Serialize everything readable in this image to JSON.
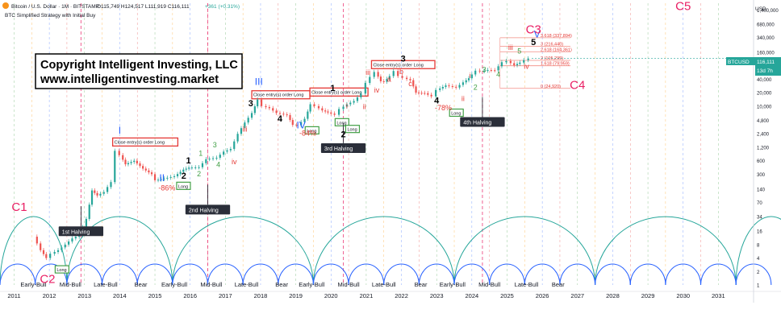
{
  "header": {
    "symbol_line": "Bitcoin / U.S. Dollar · 1M · BITSTAMP",
    "ohlc": "O115,749  H124,517  L111,919  C116,111",
    "change": "+361 (+0.31%)",
    "strategy": "BTC Simplified Strategy with Initial Buy",
    "currency": "USD"
  },
  "copyright": {
    "line1": "Copyright Intelligent Investing, LLC",
    "line2": "www.intelligentinvesting.market"
  },
  "price_tag": {
    "symbol": "BTCUSD",
    "price": "116,111",
    "countdown": "13d 7h"
  },
  "colors": {
    "candle_up": "#26a69a",
    "candle_down": "#ef5350",
    "cycle_arc": "#26a69a",
    "wave_blue": "#2962ff",
    "wave_red": "#e53935",
    "wave_green": "#43a047",
    "fib": "#f28b82",
    "cycle_label": "#e91e63"
  },
  "chart_data": {
    "type": "line",
    "scale": "log",
    "x_range": [
      2010.6,
      2032.0
    ],
    "y_range": [
      1,
      2000000
    ],
    "y_ticks": [
      {
        "v": 1400000,
        "t": "1,400,000"
      },
      {
        "v": 680000,
        "t": "680,000"
      },
      {
        "v": 340000,
        "t": "340,000"
      },
      {
        "v": 160000,
        "t": "160,000"
      },
      {
        "v": 80000,
        "t": "80,000"
      },
      {
        "v": 40000,
        "t": "40,000"
      },
      {
        "v": 20000,
        "t": "20,000"
      },
      {
        "v": 10000,
        "t": "10,000"
      },
      {
        "v": 4800,
        "t": "4,800"
      },
      {
        "v": 2400,
        "t": "2,400"
      },
      {
        "v": 1200,
        "t": "1,200"
      },
      {
        "v": 600,
        "t": "600"
      },
      {
        "v": 300,
        "t": "300"
      },
      {
        "v": 140,
        "t": "140"
      },
      {
        "v": 70,
        "t": "70"
      },
      {
        "v": 34,
        "t": "34"
      },
      {
        "v": 16,
        "t": "16"
      },
      {
        "v": 8,
        "t": "8"
      },
      {
        "v": 4,
        "t": "4"
      },
      {
        "v": 2,
        "t": "2"
      },
      {
        "v": 1,
        "t": "1"
      }
    ],
    "x_ticks": [
      {
        "v": 2011,
        "t": "2011"
      },
      {
        "v": 2012,
        "t": "2012"
      },
      {
        "v": 2013,
        "t": "2013"
      },
      {
        "v": 2014,
        "t": "2014"
      },
      {
        "v": 2015,
        "t": "2015"
      },
      {
        "v": 2016,
        "t": "2016"
      },
      {
        "v": 2017,
        "t": "2017"
      },
      {
        "v": 2018,
        "t": "2018"
      },
      {
        "v": 2019,
        "t": "2019"
      },
      {
        "v": 2020,
        "t": "2020"
      },
      {
        "v": 2021,
        "t": "2021"
      },
      {
        "v": 2022,
        "t": "2022"
      },
      {
        "v": 2023,
        "t": "2023"
      },
      {
        "v": 2024,
        "t": "2024"
      },
      {
        "v": 2025,
        "t": "2025"
      },
      {
        "v": 2026,
        "t": "2026"
      },
      {
        "v": 2027,
        "t": "2027"
      },
      {
        "v": 2028,
        "t": "2028"
      },
      {
        "v": 2029,
        "t": "2029"
      },
      {
        "v": 2030,
        "t": "2030"
      },
      {
        "v": 2031,
        "t": "2031"
      }
    ],
    "price": [
      [
        2011.6,
        12
      ],
      [
        2011.8,
        6
      ],
      [
        2011.95,
        4
      ],
      [
        2012.1,
        5
      ],
      [
        2012.3,
        6
      ],
      [
        2012.5,
        8
      ],
      [
        2012.7,
        11
      ],
      [
        2012.9,
        13
      ],
      [
        2013.1,
        30
      ],
      [
        2013.25,
        130
      ],
      [
        2013.4,
        100
      ],
      [
        2013.6,
        120
      ],
      [
        2013.8,
        200
      ],
      [
        2013.92,
        1000
      ],
      [
        2014.05,
        800
      ],
      [
        2014.2,
        500
      ],
      [
        2014.45,
        600
      ],
      [
        2014.7,
        400
      ],
      [
        2014.95,
        300
      ],
      [
        2015.05,
        220
      ],
      [
        2015.3,
        240
      ],
      [
        2015.6,
        270
      ],
      [
        2015.85,
        380
      ],
      [
        2016.0,
        420
      ],
      [
        2016.3,
        430
      ],
      [
        2016.5,
        650
      ],
      [
        2016.8,
        700
      ],
      [
        2017.0,
        960
      ],
      [
        2017.2,
        1100
      ],
      [
        2017.4,
        2400
      ],
      [
        2017.6,
        4300
      ],
      [
        2017.8,
        7000
      ],
      [
        2017.95,
        14000
      ],
      [
        2018.1,
        10000
      ],
      [
        2018.3,
        9000
      ],
      [
        2018.5,
        7000
      ],
      [
        2018.8,
        6300
      ],
      [
        2018.95,
        3800
      ],
      [
        2019.1,
        3700
      ],
      [
        2019.3,
        5200
      ],
      [
        2019.45,
        11000
      ],
      [
        2019.6,
        10000
      ],
      [
        2019.8,
        8000
      ],
      [
        2019.95,
        7200
      ],
      [
        2020.15,
        6400
      ],
      [
        2020.3,
        8600
      ],
      [
        2020.5,
        11000
      ],
      [
        2020.7,
        13000
      ],
      [
        2020.9,
        19000
      ],
      [
        2021.05,
        33000
      ],
      [
        2021.15,
        45000
      ],
      [
        2021.3,
        58000
      ],
      [
        2021.45,
        36000
      ],
      [
        2021.55,
        35000
      ],
      [
        2021.7,
        47000
      ],
      [
        2021.85,
        61000
      ],
      [
        2021.95,
        47000
      ],
      [
        2022.1,
        43000
      ],
      [
        2022.3,
        38000
      ],
      [
        2022.45,
        20000
      ],
      [
        2022.7,
        19500
      ],
      [
        2022.9,
        16500
      ],
      [
        2023.05,
        23000
      ],
      [
        2023.3,
        29000
      ],
      [
        2023.6,
        26000
      ],
      [
        2023.8,
        34000
      ],
      [
        2023.95,
        42000
      ],
      [
        2024.15,
        62000
      ],
      [
        2024.3,
        60000
      ],
      [
        2024.5,
        64000
      ],
      [
        2024.7,
        63000
      ],
      [
        2024.9,
        96000
      ],
      [
        2025.05,
        102000
      ],
      [
        2025.25,
        82000
      ],
      [
        2025.4,
        94000
      ],
      [
        2025.55,
        107000
      ],
      [
        2025.65,
        116111
      ]
    ],
    "halvings": [
      {
        "x": 2012.9,
        "label": "1st Halving",
        "y": 18
      },
      {
        "x": 2016.5,
        "label": "2nd Halving",
        "y": 55
      },
      {
        "x": 2020.35,
        "label": "3rd Halving",
        "y": 1300
      },
      {
        "x": 2024.3,
        "label": "4th Halving",
        "y": 5000
      }
    ],
    "phase_labels": [
      {
        "x": 2011.55,
        "t": "Early-Bull"
      },
      {
        "x": 2012.6,
        "t": "Mid-Bull"
      },
      {
        "x": 2013.6,
        "t": "Late-Bull"
      },
      {
        "x": 2014.6,
        "t": "Bear"
      },
      {
        "x": 2015.55,
        "t": "Early-Bull"
      },
      {
        "x": 2016.6,
        "t": "Mid-Bull"
      },
      {
        "x": 2017.6,
        "t": "Late-Bull"
      },
      {
        "x": 2018.6,
        "t": "Bear"
      },
      {
        "x": 2019.45,
        "t": "Early-Bull"
      },
      {
        "x": 2020.5,
        "t": "Mid-Bull"
      },
      {
        "x": 2021.5,
        "t": "Late-Bull"
      },
      {
        "x": 2022.55,
        "t": "Bear"
      },
      {
        "x": 2023.45,
        "t": "Early-Bull"
      },
      {
        "x": 2024.5,
        "t": "Mid-Bull"
      },
      {
        "x": 2025.55,
        "t": "Late-Bull"
      },
      {
        "x": 2026.45,
        "t": "Bear"
      }
    ],
    "cycle_arcs": [
      {
        "x0": 2010.6,
        "x1": 2012.5
      },
      {
        "x0": 2012.5,
        "x1": 2015.5
      },
      {
        "x0": 2015.5,
        "x1": 2019.5
      },
      {
        "x0": 2019.5,
        "x1": 2023.5
      },
      {
        "x0": 2023.5,
        "x1": 2027.5
      },
      {
        "x0": 2027.5,
        "x1": 2031.5
      },
      {
        "x0": 2031.5,
        "x1": 2033.5
      }
    ],
    "small_arcs": [
      {
        "x0": 2010.6,
        "x1": 2011.6
      },
      {
        "x0": 2011.6,
        "x1": 2012.5
      },
      {
        "x0": 2012.5,
        "x1": 2013.5
      },
      {
        "x0": 2013.5,
        "x1": 2014.5
      },
      {
        "x0": 2014.5,
        "x1": 2015.5
      },
      {
        "x0": 2015.5,
        "x1": 2016.5
      },
      {
        "x0": 2016.5,
        "x1": 2017.5
      },
      {
        "x0": 2017.5,
        "x1": 2018.5
      },
      {
        "x0": 2018.5,
        "x1": 2019.5
      },
      {
        "x0": 2019.5,
        "x1": 2020.5
      },
      {
        "x0": 2020.5,
        "x1": 2021.5
      },
      {
        "x0": 2021.5,
        "x1": 2022.5
      },
      {
        "x0": 2022.5,
        "x1": 2023.5
      },
      {
        "x0": 2023.5,
        "x1": 2024.5
      },
      {
        "x0": 2024.5,
        "x1": 2025.5
      },
      {
        "x0": 2025.5,
        "x1": 2026.5
      },
      {
        "x0": 2026.5,
        "x1": 2027.5
      },
      {
        "x0": 2027.5,
        "x1": 2028.5
      },
      {
        "x0": 2028.5,
        "x1": 2029.5
      },
      {
        "x0": 2029.5,
        "x1": 2030.5
      },
      {
        "x0": 2030.5,
        "x1": 2031.5
      },
      {
        "x0": 2031.5,
        "x1": 2032.5
      }
    ],
    "cycle_markers": [
      {
        "x": 2011.15,
        "y": 45,
        "t": "C1"
      },
      {
        "x": 2011.95,
        "y": 1.1,
        "t": "C2"
      },
      {
        "x": 2025.75,
        "y": 420000,
        "t": "C3"
      },
      {
        "x": 2027.0,
        "y": 24000,
        "t": "C4"
      },
      {
        "x": 2030.0,
        "y": 1400000,
        "t": "C5"
      }
    ],
    "fib_levels": [
      {
        "v": 337894,
        "t": "3.618 (337,894)"
      },
      {
        "v": 216440,
        "t": "3 (216,440)"
      },
      {
        "v": 164361,
        "t": "2.618 (164,361)"
      },
      {
        "v": 105299,
        "t": "2 (105,299)"
      },
      {
        "v": 79959,
        "t": "1.618 (79,959)"
      },
      {
        "v": 24920,
        "t": "0 (24,920)"
      }
    ],
    "drawdowns": [
      {
        "x": 2015.1,
        "y": 130,
        "t": "-86%"
      },
      {
        "x": 2019.1,
        "y": 2200,
        "t": "-84%"
      },
      {
        "x": 2022.95,
        "y": 8000,
        "t": "-78%"
      }
    ],
    "close_boxes": [
      {
        "x0": 2013.8,
        "x1": 2015.65,
        "y": 1450,
        "t": "Close entry(s) order Long"
      },
      {
        "x0": 2017.75,
        "x1": 2019.4,
        "y": 16500,
        "t": "Close entry(s) order Long"
      },
      {
        "x0": 2019.4,
        "x1": 2021.05,
        "y": 19000,
        "t": "Close entry(s) order Long"
      },
      {
        "x0": 2021.15,
        "x1": 2022.95,
        "y": 78000,
        "t": "Close entry(s) order Long"
      }
    ],
    "long_boxes": [
      {
        "x": 2012.35,
        "y": 2.1,
        "t": "Long"
      },
      {
        "x": 2015.8,
        "y": 155,
        "t": "Long"
      },
      {
        "x": 2019.45,
        "y": 2700,
        "t": "Long"
      },
      {
        "x": 2020.3,
        "y": 4100,
        "t": "Long"
      },
      {
        "x": 2020.6,
        "y": 2900,
        "t": "Long"
      },
      {
        "x": 2023.55,
        "y": 6700,
        "t": "Long"
      }
    ],
    "wave_labels": [
      {
        "x": 2014.0,
        "y": 2400,
        "t": "I",
        "c": "blue",
        "s": 12
      },
      {
        "x": 2015.2,
        "y": 210,
        "t": "II",
        "c": "blue",
        "s": 12
      },
      {
        "x": 2017.95,
        "y": 30000,
        "t": "III",
        "c": "blue",
        "s": 12
      },
      {
        "x": 2019.15,
        "y": 3200,
        "t": "IV",
        "c": "blue",
        "s": 12
      },
      {
        "x": 2025.85,
        "y": 340000,
        "t": "V",
        "c": "blue",
        "s": 12
      },
      {
        "x": 2015.95,
        "y": 520,
        "t": "1",
        "c": "black",
        "s": 11
      },
      {
        "x": 2015.82,
        "y": 240,
        "t": "2",
        "c": "black",
        "s": 11
      },
      {
        "x": 2017.72,
        "y": 10000,
        "t": "3",
        "c": "black",
        "s": 11
      },
      {
        "x": 2018.55,
        "y": 4500,
        "t": "4",
        "c": "black",
        "s": 11
      },
      {
        "x": 2020.05,
        "y": 22000,
        "t": "1",
        "c": "black",
        "s": 11
      },
      {
        "x": 2020.35,
        "y": 2000,
        "t": "2",
        "c": "black",
        "s": 11
      },
      {
        "x": 2022.05,
        "y": 100000,
        "t": "3",
        "c": "black",
        "s": 11
      },
      {
        "x": 2023.0,
        "y": 11500,
        "t": "4",
        "c": "black",
        "s": 11
      },
      {
        "x": 2025.75,
        "y": 230000,
        "t": "5",
        "c": "black",
        "s": 11
      },
      {
        "x": 2016.3,
        "y": 780,
        "t": "1",
        "c": "green",
        "s": 9
      },
      {
        "x": 2016.25,
        "y": 270,
        "t": "2",
        "c": "green",
        "s": 9
      },
      {
        "x": 2016.7,
        "y": 1200,
        "t": "3",
        "c": "green",
        "s": 9
      },
      {
        "x": 2016.8,
        "y": 430,
        "t": "4",
        "c": "green",
        "s": 9
      },
      {
        "x": 2024.35,
        "y": 58000,
        "t": "3",
        "c": "green",
        "s": 9
      },
      {
        "x": 2024.75,
        "y": 45000,
        "t": "4",
        "c": "green",
        "s": 9
      },
      {
        "x": 2025.35,
        "y": 150000,
        "t": "5",
        "c": "green",
        "s": 9
      },
      {
        "x": 2024.1,
        "y": 23000,
        "t": "2",
        "c": "green",
        "s": 9
      },
      {
        "x": 2017.25,
        "y": 500,
        "t": "iv",
        "c": "red",
        "s": 9
      },
      {
        "x": 2017.55,
        "y": 2700,
        "t": "iii",
        "c": "red",
        "s": 9
      },
      {
        "x": 2021.05,
        "y": 50000,
        "t": "iii",
        "c": "red",
        "s": 9
      },
      {
        "x": 2021.3,
        "y": 20000,
        "t": "iv",
        "c": "red",
        "s": 9
      },
      {
        "x": 2021.65,
        "y": 35000,
        "t": "a",
        "c": "red",
        "s": 9
      },
      {
        "x": 2022.0,
        "y": 52000,
        "t": "b",
        "c": "red",
        "s": 9
      },
      {
        "x": 2022.25,
        "y": 28000,
        "t": "c",
        "c": "red",
        "s": 9
      },
      {
        "x": 2025.1,
        "y": 180000,
        "t": "iii",
        "c": "red",
        "s": 9
      },
      {
        "x": 2025.55,
        "y": 68000,
        "t": "iv",
        "c": "red",
        "s": 9
      },
      {
        "x": 2020.95,
        "y": 8500,
        "t": "ii",
        "c": "red",
        "s": 9
      },
      {
        "x": 2020.45,
        "y": 9000,
        "t": "i",
        "c": "red",
        "s": 9
      },
      {
        "x": 2023.75,
        "y": 13000,
        "t": "ii",
        "c": "red",
        "s": 9
      },
      {
        "x": 2023.95,
        "y": 42000,
        "t": "i",
        "c": "red",
        "s": 9
      }
    ]
  }
}
